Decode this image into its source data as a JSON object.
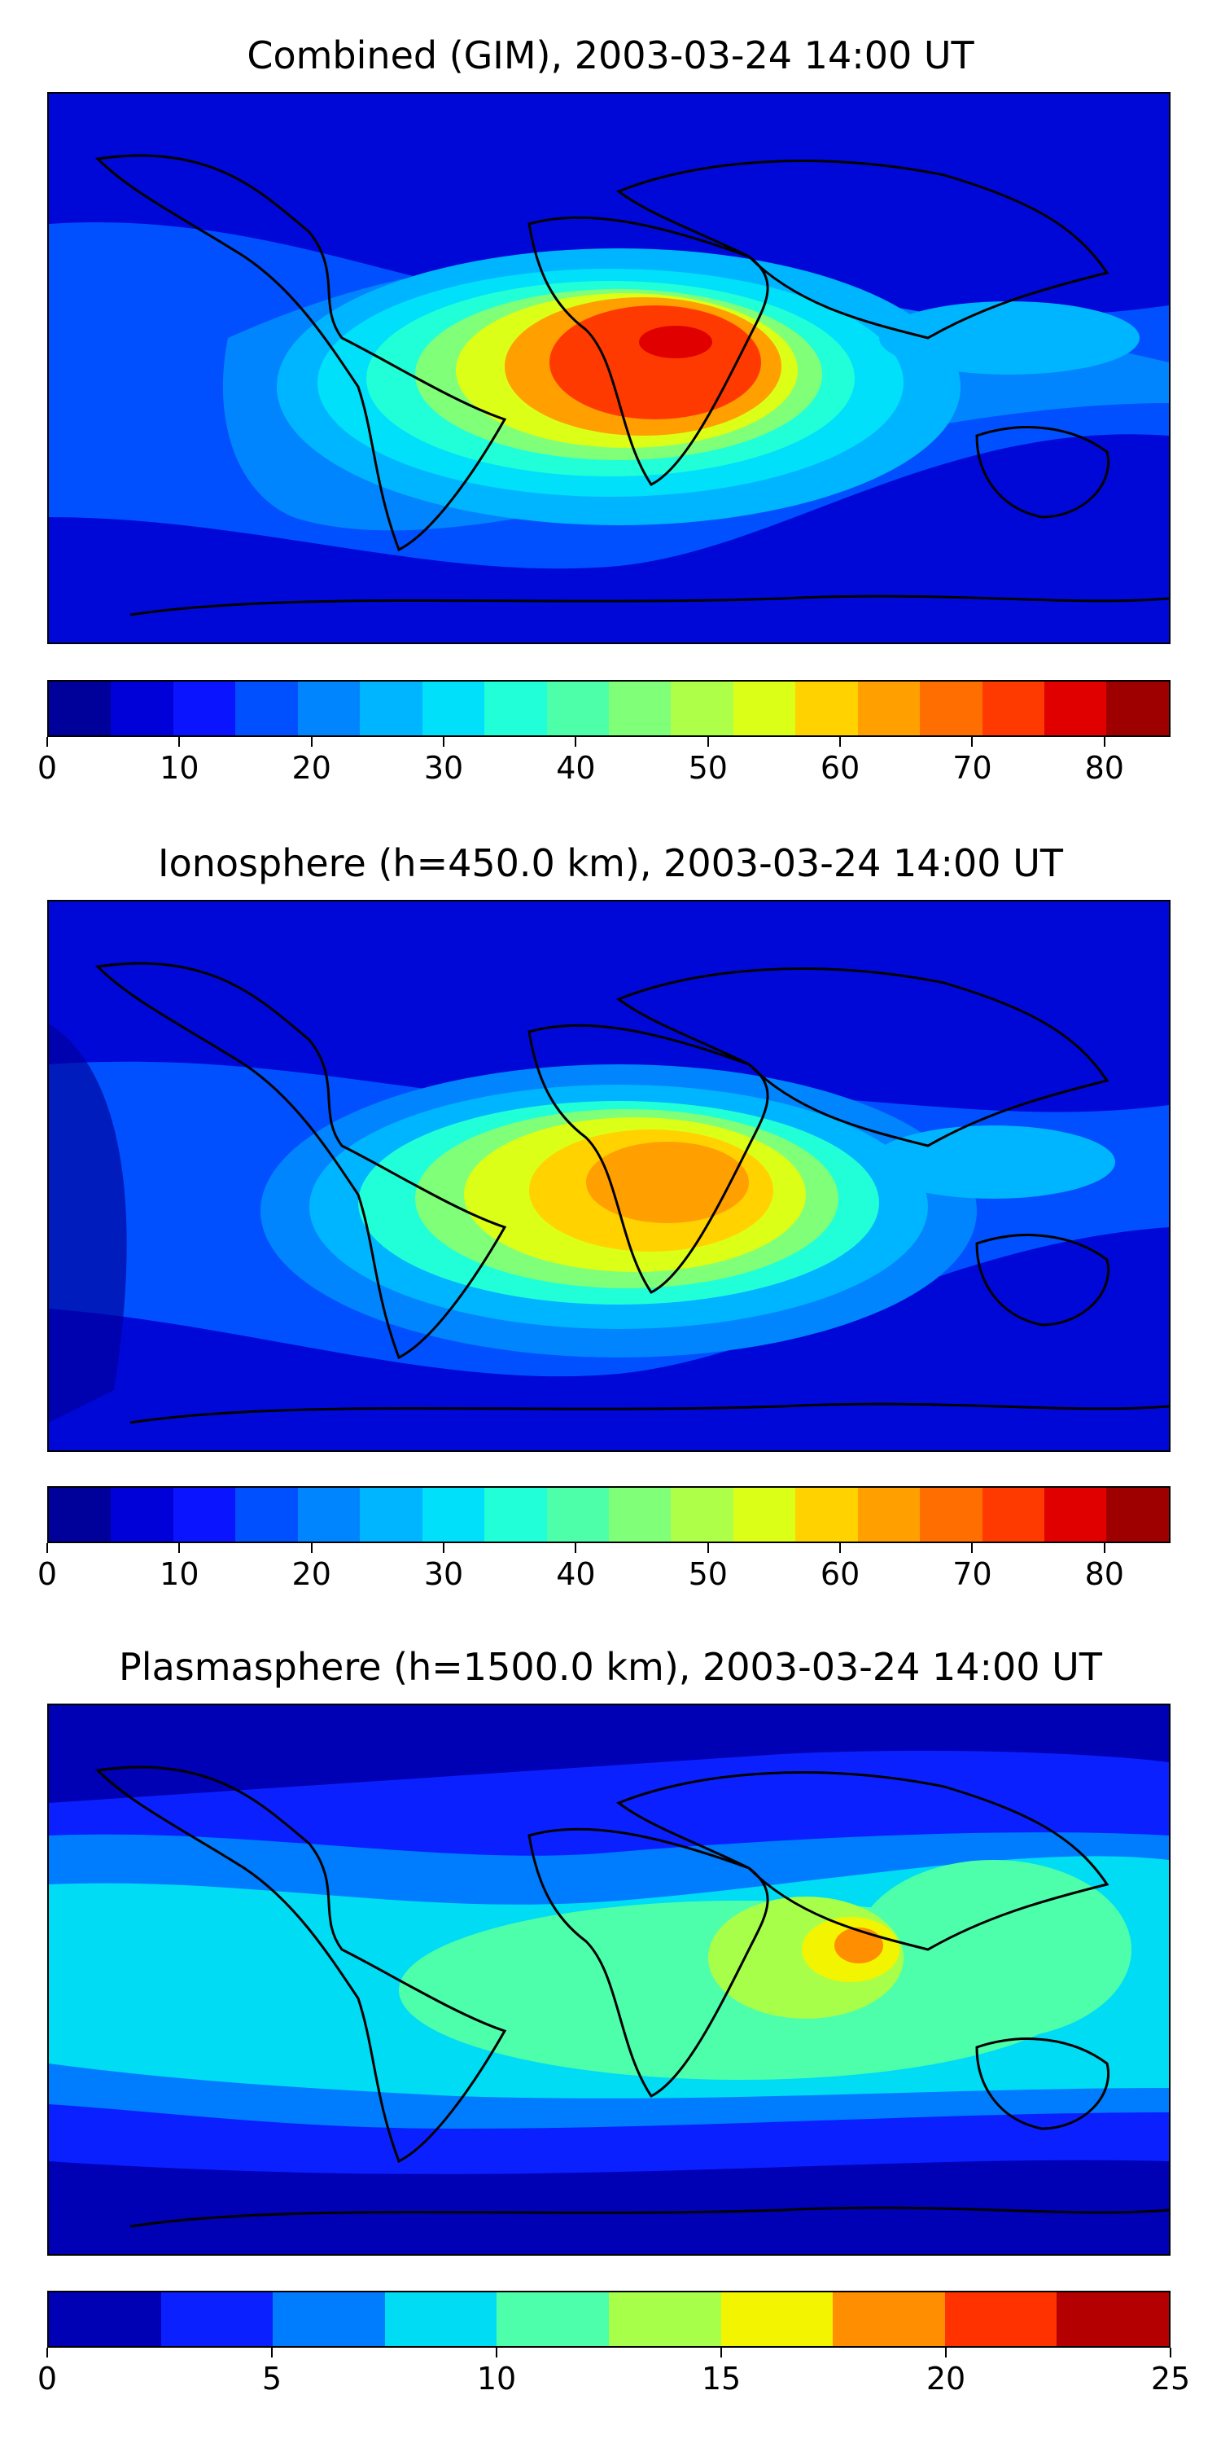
{
  "panels": [
    {
      "title": "Combined (GIM), 2003-03-24 14:00 UT",
      "field": "tec-combined",
      "colorbar": {
        "min": 0,
        "max": 85,
        "levels": [
          0,
          5,
          10,
          15,
          20,
          25,
          30,
          35,
          40,
          45,
          50,
          55,
          60,
          65,
          70,
          75,
          80,
          85
        ],
        "colors": [
          "#00009a",
          "#0000d8",
          "#0a14ff",
          "#0050ff",
          "#0085ff",
          "#00b5ff",
          "#00e0fa",
          "#20ffd8",
          "#4dffa8",
          "#80ff78",
          "#adff48",
          "#dcff18",
          "#ffd200",
          "#ffa000",
          "#ff6e00",
          "#ff3a00",
          "#e00000",
          "#9e0000"
        ],
        "ticks": [
          "0",
          "10",
          "20",
          "30",
          "40",
          "50",
          "60",
          "70",
          "80"
        ],
        "tick_values": [
          0,
          10,
          20,
          30,
          40,
          50,
          60,
          70,
          80
        ]
      }
    },
    {
      "title": "Ionosphere  (h=450.0 km), 2003-03-24 14:00 UT",
      "field": "tec-ionosphere",
      "colorbar": {
        "min": 0,
        "max": 85,
        "levels": [
          0,
          5,
          10,
          15,
          20,
          25,
          30,
          35,
          40,
          45,
          50,
          55,
          60,
          65,
          70,
          75,
          80,
          85
        ],
        "colors": [
          "#00009a",
          "#0000d8",
          "#0a14ff",
          "#0050ff",
          "#0085ff",
          "#00b5ff",
          "#00e0fa",
          "#20ffd8",
          "#4dffa8",
          "#80ff78",
          "#adff48",
          "#dcff18",
          "#ffd200",
          "#ffa000",
          "#ff6e00",
          "#ff3a00",
          "#e00000",
          "#9e0000"
        ],
        "ticks": [
          "0",
          "10",
          "20",
          "30",
          "40",
          "50",
          "60",
          "70",
          "80"
        ],
        "tick_values": [
          0,
          10,
          20,
          30,
          40,
          50,
          60,
          70,
          80
        ]
      }
    },
    {
      "title": "Plasmasphere (h=1500.0 km), 2003-03-24 14:00 UT",
      "field": "tec-plasmasphere",
      "colorbar": {
        "min": 0,
        "max": 25,
        "levels": [
          0,
          2.5,
          5,
          7.5,
          10,
          12.5,
          15,
          17.5,
          20,
          22.5,
          25
        ],
        "colors": [
          "#0000b4",
          "#0a20ff",
          "#007cff",
          "#00dcf4",
          "#4dffaa",
          "#a8ff4a",
          "#f2f400",
          "#ff8e00",
          "#ff3200",
          "#b40000"
        ],
        "ticks": [
          "0",
          "5",
          "10",
          "15",
          "20",
          "25"
        ],
        "tick_values": [
          0,
          5,
          10,
          15,
          20,
          25
        ]
      }
    }
  ]
}
